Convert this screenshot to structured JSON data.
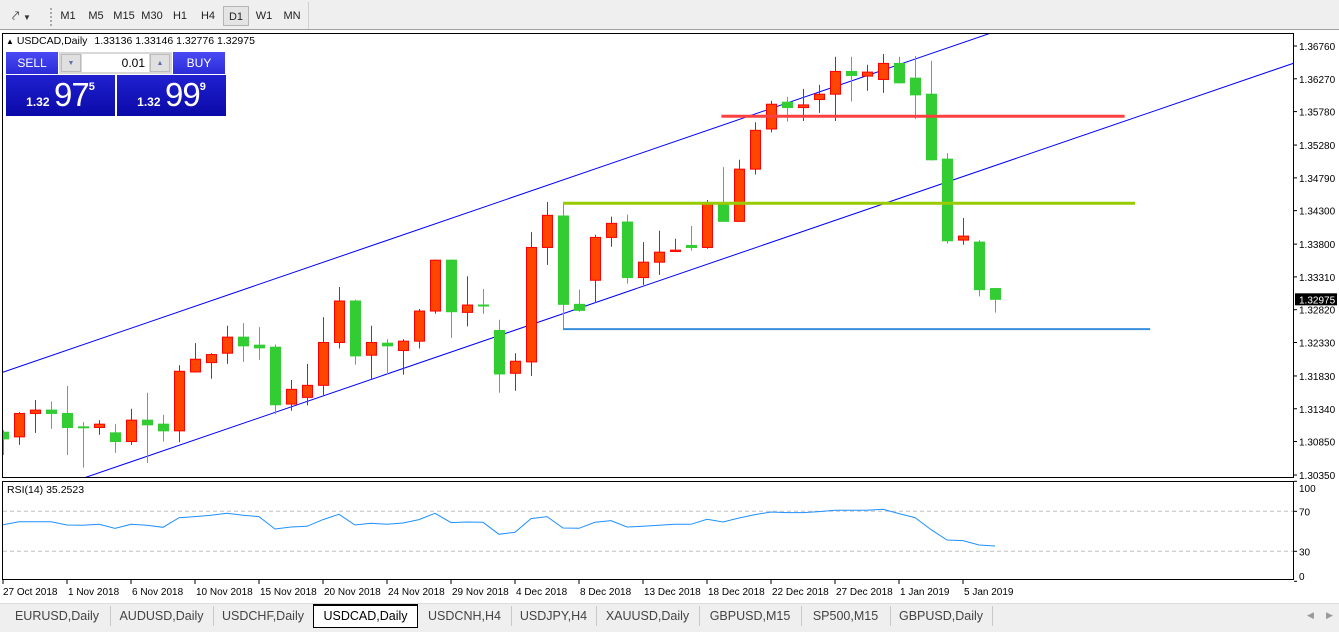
{
  "toolbar": {
    "timeframes": [
      "M1",
      "M5",
      "M15",
      "M30",
      "H1",
      "H4",
      "D1",
      "W1",
      "MN"
    ],
    "active_timeframe": "D1"
  },
  "chart": {
    "symbol_label": "USDCAD,Daily",
    "ohlc_text": "1.33136 1.33146 1.32776 1.32975",
    "current_price": "1.32975",
    "colors": {
      "bull_body": "#ff4500",
      "bull_edge": "#ff0000",
      "bear_body": "#32cd32",
      "bear_edge": "#32cd32",
      "channel": "#0000ff",
      "current_price_bg": "#000000"
    },
    "price_axis": [
      "1.36760",
      "1.36270",
      "1.35780",
      "1.35280",
      "1.34790",
      "1.34300",
      "1.33800",
      "1.33310",
      "1.32820",
      "1.32330",
      "1.31830",
      "1.31340",
      "1.30850",
      "1.30350"
    ],
    "date_labels": [
      "27 Oct 2018",
      "1 Nov 2018",
      "6 Nov 2018",
      "10 Nov 2018",
      "15 Nov 2018",
      "20 Nov 2018",
      "24 Nov 2018",
      "29 Nov 2018",
      "4 Dec 2018",
      "8 Dec 2018",
      "13 Dec 2018",
      "18 Dec 2018",
      "22 Dec 2018",
      "27 Dec 2018",
      "1 Jan 2019",
      "5 Jan 2019"
    ]
  },
  "chart_data": {
    "type": "candlestick",
    "ohlc": [
      [
        1.3099,
        1.3102,
        1.3065,
        1.3089
      ],
      [
        1.3092,
        1.3129,
        1.308,
        1.3127
      ],
      [
        1.3127,
        1.3147,
        1.3098,
        1.3132
      ],
      [
        1.3132,
        1.3145,
        1.3104,
        1.3127
      ],
      [
        1.3127,
        1.3168,
        1.3065,
        1.3106
      ],
      [
        1.3107,
        1.3114,
        1.3046,
        1.3106
      ],
      [
        1.3106,
        1.3117,
        1.3095,
        1.3111
      ],
      [
        1.3098,
        1.3111,
        1.3068,
        1.3085
      ],
      [
        1.3085,
        1.3134,
        1.308,
        1.3117
      ],
      [
        1.3117,
        1.3158,
        1.3053,
        1.311
      ],
      [
        1.3111,
        1.3125,
        1.3085,
        1.3101
      ],
      [
        1.3101,
        1.3199,
        1.3084,
        1.319
      ],
      [
        1.3189,
        1.3232,
        1.3188,
        1.3208
      ],
      [
        1.3203,
        1.3217,
        1.3179,
        1.3215
      ],
      [
        1.3217,
        1.3258,
        1.3201,
        1.3241
      ],
      [
        1.3241,
        1.3262,
        1.3204,
        1.3228
      ],
      [
        1.3229,
        1.3256,
        1.3207,
        1.3225
      ],
      [
        1.3226,
        1.323,
        1.3126,
        1.314
      ],
      [
        1.3141,
        1.3177,
        1.3131,
        1.3163
      ],
      [
        1.3151,
        1.3201,
        1.3139,
        1.3169
      ],
      [
        1.3169,
        1.3271,
        1.3153,
        1.3233
      ],
      [
        1.3233,
        1.3316,
        1.3224,
        1.3295
      ],
      [
        1.3295,
        1.3297,
        1.32,
        1.3213
      ],
      [
        1.3214,
        1.3258,
        1.3178,
        1.3233
      ],
      [
        1.3232,
        1.3238,
        1.3186,
        1.3228
      ],
      [
        1.3221,
        1.3238,
        1.3185,
        1.3235
      ],
      [
        1.3235,
        1.3283,
        1.3224,
        1.328
      ],
      [
        1.328,
        1.3357,
        1.3276,
        1.3356
      ],
      [
        1.3356,
        1.3357,
        1.324,
        1.3279
      ],
      [
        1.3278,
        1.3332,
        1.3257,
        1.3289
      ],
      [
        1.3289,
        1.3313,
        1.3276,
        1.3288
      ],
      [
        1.3251,
        1.3267,
        1.3158,
        1.3186
      ],
      [
        1.3187,
        1.3217,
        1.3161,
        1.3205
      ],
      [
        1.3204,
        1.3398,
        1.3183,
        1.3375
      ],
      [
        1.3375,
        1.3443,
        1.3349,
        1.3423
      ],
      [
        1.3422,
        1.3441,
        1.3253,
        1.329
      ],
      [
        1.329,
        1.3312,
        1.3279,
        1.3281
      ],
      [
        1.3326,
        1.3394,
        1.3292,
        1.339
      ],
      [
        1.339,
        1.3421,
        1.3376,
        1.3411
      ],
      [
        1.3413,
        1.3424,
        1.3321,
        1.333
      ],
      [
        1.333,
        1.3383,
        1.3319,
        1.3353
      ],
      [
        1.3353,
        1.34,
        1.3334,
        1.3368
      ],
      [
        1.3369,
        1.3388,
        1.3368,
        1.3371
      ],
      [
        1.3378,
        1.3407,
        1.337,
        1.3375
      ],
      [
        1.3375,
        1.3446,
        1.3373,
        1.3441
      ],
      [
        1.3441,
        1.3495,
        1.3414,
        1.3414
      ],
      [
        1.3414,
        1.3506,
        1.3413,
        1.3492
      ],
      [
        1.3492,
        1.3562,
        1.3484,
        1.355
      ],
      [
        1.3552,
        1.3594,
        1.3547,
        1.3589
      ],
      [
        1.3592,
        1.36,
        1.3563,
        1.3584
      ],
      [
        1.3584,
        1.3612,
        1.3564,
        1.3588
      ],
      [
        1.3596,
        1.3618,
        1.3576,
        1.3604
      ],
      [
        1.3604,
        1.366,
        1.3564,
        1.3638
      ],
      [
        1.3638,
        1.366,
        1.3593,
        1.3632
      ],
      [
        1.3631,
        1.3648,
        1.3609,
        1.3637
      ],
      [
        1.3626,
        1.3664,
        1.3606,
        1.365
      ],
      [
        1.365,
        1.366,
        1.362,
        1.3621
      ],
      [
        1.3628,
        1.3661,
        1.3567,
        1.3603
      ],
      [
        1.3604,
        1.3654,
        1.3505,
        1.3506
      ],
      [
        1.3507,
        1.3516,
        1.3381,
        1.3385
      ],
      [
        1.3386,
        1.3419,
        1.3379,
        1.3392
      ],
      [
        1.3383,
        1.3386,
        1.3302,
        1.3312
      ],
      [
        1.33136,
        1.33146,
        1.32776,
        1.32975
      ]
    ],
    "ylim": [
      1.3035,
      1.3676
    ],
    "trendlines": [
      {
        "from": {
          "bar": -0.2,
          "price": 1.3187
        },
        "to": {
          "bar": 61.7,
          "price": 1.3695
        }
      },
      {
        "from": {
          "bar": 5.1,
          "price": 1.3031
        },
        "to": {
          "bar": 80.75,
          "price": 1.3651
        }
      }
    ],
    "horizontal_lines": [
      {
        "price": 1.3571,
        "from_bar": 44.9,
        "to_bar": 70.1,
        "color": "#ff4040"
      },
      {
        "price": 1.3441,
        "from_bar": 35,
        "to_bar": 70.75,
        "color": "#99cc00"
      },
      {
        "price": 1.3253,
        "from_bar": 35,
        "to_bar": 71.7,
        "color": "#3a8fdc"
      }
    ],
    "rsi": {
      "label": "RSI(14) 35.2523",
      "period": 14,
      "levels": [
        70,
        30
      ],
      "axis_labels": [
        "100",
        "70",
        "30",
        "0"
      ],
      "color": "#1e90ff",
      "values": [
        56.6,
        59.6,
        59.6,
        59.6,
        56.3,
        56,
        57,
        53,
        57,
        56,
        54,
        63.6,
        64.7,
        66,
        68,
        66,
        64.7,
        52.3,
        54.3,
        55,
        61.7,
        67,
        56.3,
        58,
        57,
        58.3,
        61.7,
        68,
        58.7,
        59.3,
        59,
        47,
        49,
        62.7,
        64.7,
        53.3,
        53,
        59,
        60.7,
        54.3,
        55,
        56,
        57,
        57,
        62,
        59.3,
        63.3,
        66.7,
        69.3,
        68.7,
        68.7,
        69.7,
        71,
        71,
        71,
        72,
        67.7,
        63.7,
        51.7,
        41.3,
        40.7,
        36.3,
        35.2523
      ]
    }
  },
  "trade_panel": {
    "sell_label": "SELL",
    "buy_label": "BUY",
    "lot": "0.01",
    "sell_price": {
      "prefix": "1.32",
      "main": "97",
      "sup": "5"
    },
    "buy_price": {
      "prefix": "1.32",
      "main": "99",
      "sup": "9"
    }
  },
  "tabs": [
    {
      "label": "EURUSD,Daily"
    },
    {
      "label": "AUDUSD,Daily"
    },
    {
      "label": "USDCHF,Daily"
    },
    {
      "label": "USDCAD,Daily",
      "active": true
    },
    {
      "label": "USDCNH,H4"
    },
    {
      "label": "USDJPY,H4"
    },
    {
      "label": "XAUUSD,Daily"
    },
    {
      "label": "GBPUSD,M15"
    },
    {
      "label": "SP500,M15"
    },
    {
      "label": "GBPUSD,Daily"
    }
  ]
}
